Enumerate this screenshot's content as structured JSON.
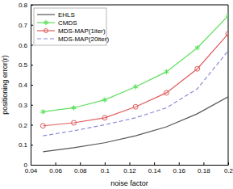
{
  "chart_data": {
    "type": "line",
    "x_label": "noise factor",
    "y_label": "positioning error(r)",
    "x": [
      0.05,
      0.075,
      0.1,
      0.125,
      0.15,
      0.175,
      0.2
    ],
    "series": [
      {
        "name": "EHLS",
        "color": "#555555",
        "line_style": "solid",
        "marker": "none",
        "values": [
          0.065,
          0.085,
          0.11,
          0.145,
          0.19,
          0.255,
          0.34
        ]
      },
      {
        "name": "CMDS",
        "color": "#5ee05e",
        "line_style": "solid",
        "marker": "asterisk",
        "values": [
          0.265,
          0.285,
          0.325,
          0.39,
          0.465,
          0.585,
          0.745
        ]
      },
      {
        "name": "MDS-MAP(1iter)",
        "color": "#e05a5a",
        "line_style": "solid",
        "marker": "circle",
        "values": [
          0.195,
          0.21,
          0.235,
          0.29,
          0.36,
          0.48,
          0.655
        ]
      },
      {
        "name": "MDS-MAP(20iter)",
        "color": "#8a8ad6",
        "line_style": "dashed",
        "marker": "none",
        "values": [
          0.145,
          0.17,
          0.2,
          0.235,
          0.285,
          0.38,
          0.57
        ]
      }
    ],
    "xlim": [
      0.04,
      0.2
    ],
    "xticks": [
      0.04,
      0.06,
      0.08,
      0.1,
      0.12,
      0.14,
      0.16,
      0.18,
      0.2
    ],
    "ylim": [
      0,
      0.8
    ],
    "yticks": [
      0,
      0.1,
      0.2,
      0.3,
      0.4,
      0.5,
      0.6,
      0.7,
      0.8
    ],
    "legend": "upper left",
    "grid": false
  }
}
